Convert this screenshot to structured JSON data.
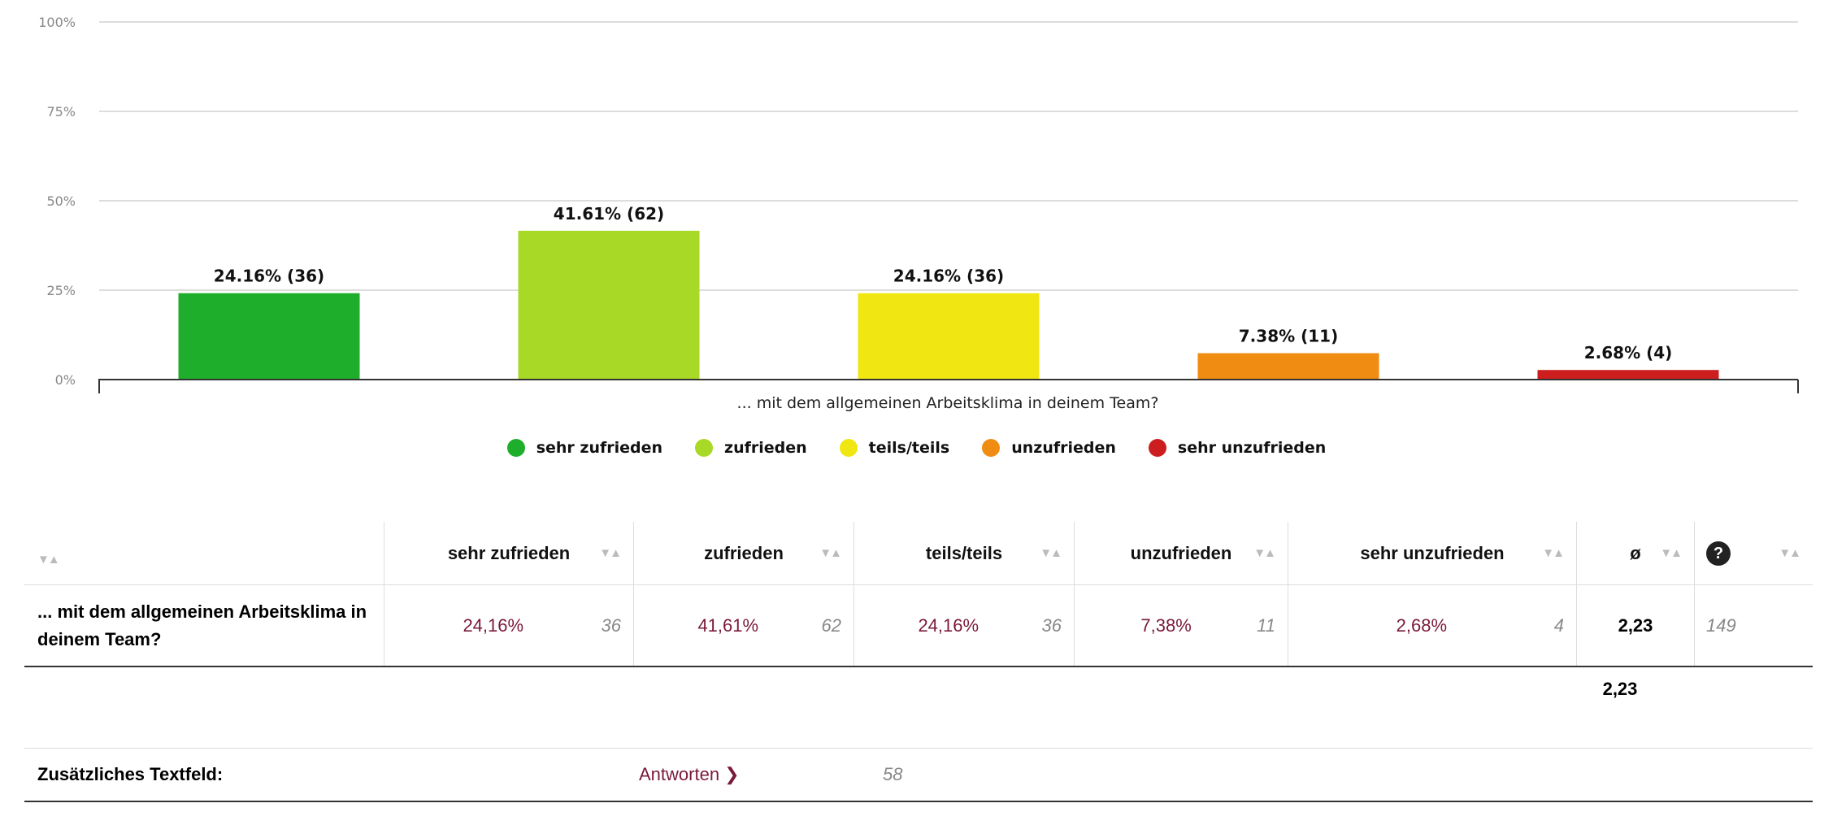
{
  "chart_data": {
    "type": "bar",
    "title": "",
    "xlabel": "... mit dem allgemeinen Arbeitsklima in deinem Team?",
    "ylabel": "",
    "ylim": [
      0,
      100
    ],
    "yticks": [
      "0%",
      "25%",
      "50%",
      "75%",
      "100%"
    ],
    "ytick_values": [
      0,
      25,
      50,
      75,
      100
    ],
    "grid": true,
    "legend_position": "bottom",
    "categories": [
      "sehr zufrieden",
      "zufrieden",
      "teils/teils",
      "unzufrieden",
      "sehr unzufrieden"
    ],
    "values": [
      24.16,
      41.61,
      24.16,
      7.38,
      2.68
    ],
    "counts": [
      36,
      62,
      36,
      11,
      4
    ],
    "data_labels": [
      "24.16% (36)",
      "41.61% (62)",
      "24.16% (36)",
      "7.38% (11)",
      "2.68% (4)"
    ],
    "colors": [
      "#1fae2b",
      "#a8d926",
      "#f0e612",
      "#f08c12",
      "#cc1e1e"
    ]
  },
  "legend": [
    {
      "label": "sehr zufrieden",
      "color": "#1fae2b"
    },
    {
      "label": "zufrieden",
      "color": "#a8d926"
    },
    {
      "label": "teils/teils",
      "color": "#f0e612"
    },
    {
      "label": "unzufrieden",
      "color": "#f08c12"
    },
    {
      "label": "sehr unzufrieden",
      "color": "#cc1e1e"
    }
  ],
  "table": {
    "sort_glyph": "▼▲",
    "headers": [
      "sehr zufrieden",
      "zufrieden",
      "teils/teils",
      "unzufrieden",
      "sehr unzufrieden",
      "ø",
      "?"
    ],
    "row": {
      "question": "... mit dem allgemeinen Arbeitsklima in deinem Team?",
      "cells": [
        {
          "pct": "24,16%",
          "count": "36"
        },
        {
          "pct": "41,61%",
          "count": "62"
        },
        {
          "pct": "24,16%",
          "count": "36"
        },
        {
          "pct": "7,38%",
          "count": "11"
        },
        {
          "pct": "2,68%",
          "count": "4"
        }
      ],
      "average": "2,23",
      "total": "149"
    },
    "summary_average": "2,23"
  },
  "textfield": {
    "label": "Zusätzliches Textfeld:",
    "link": "Antworten ❯",
    "count": "58"
  }
}
